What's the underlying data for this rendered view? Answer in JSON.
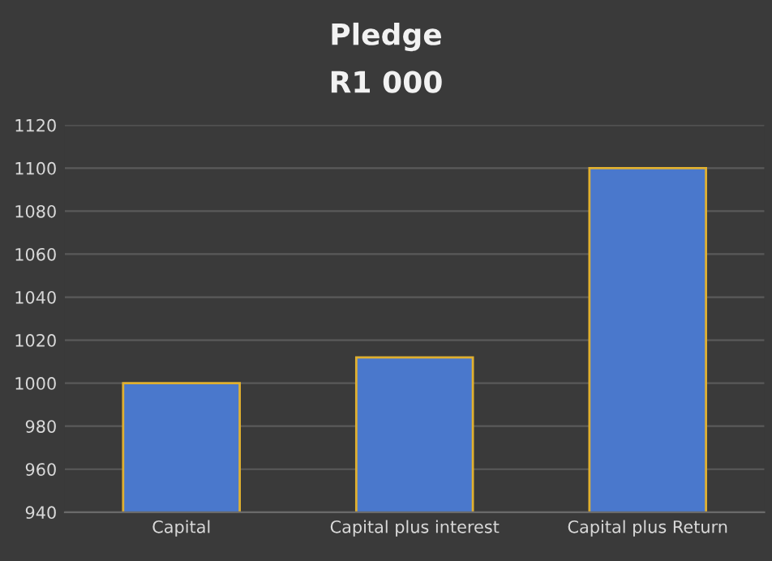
{
  "chart_data": {
    "type": "bar",
    "title": "Pledge",
    "subtitle": "R1 000",
    "categories": [
      "Capital",
      "Capital plus interest",
      "Capital plus Return"
    ],
    "values": [
      1000,
      1012,
      1100
    ],
    "color": "#4a78cc",
    "ylim": [
      940,
      1120
    ],
    "yticks": [
      940,
      960,
      980,
      1000,
      1020,
      1040,
      1060,
      1080,
      1100,
      1120
    ],
    "grid": "y",
    "legend": false
  }
}
